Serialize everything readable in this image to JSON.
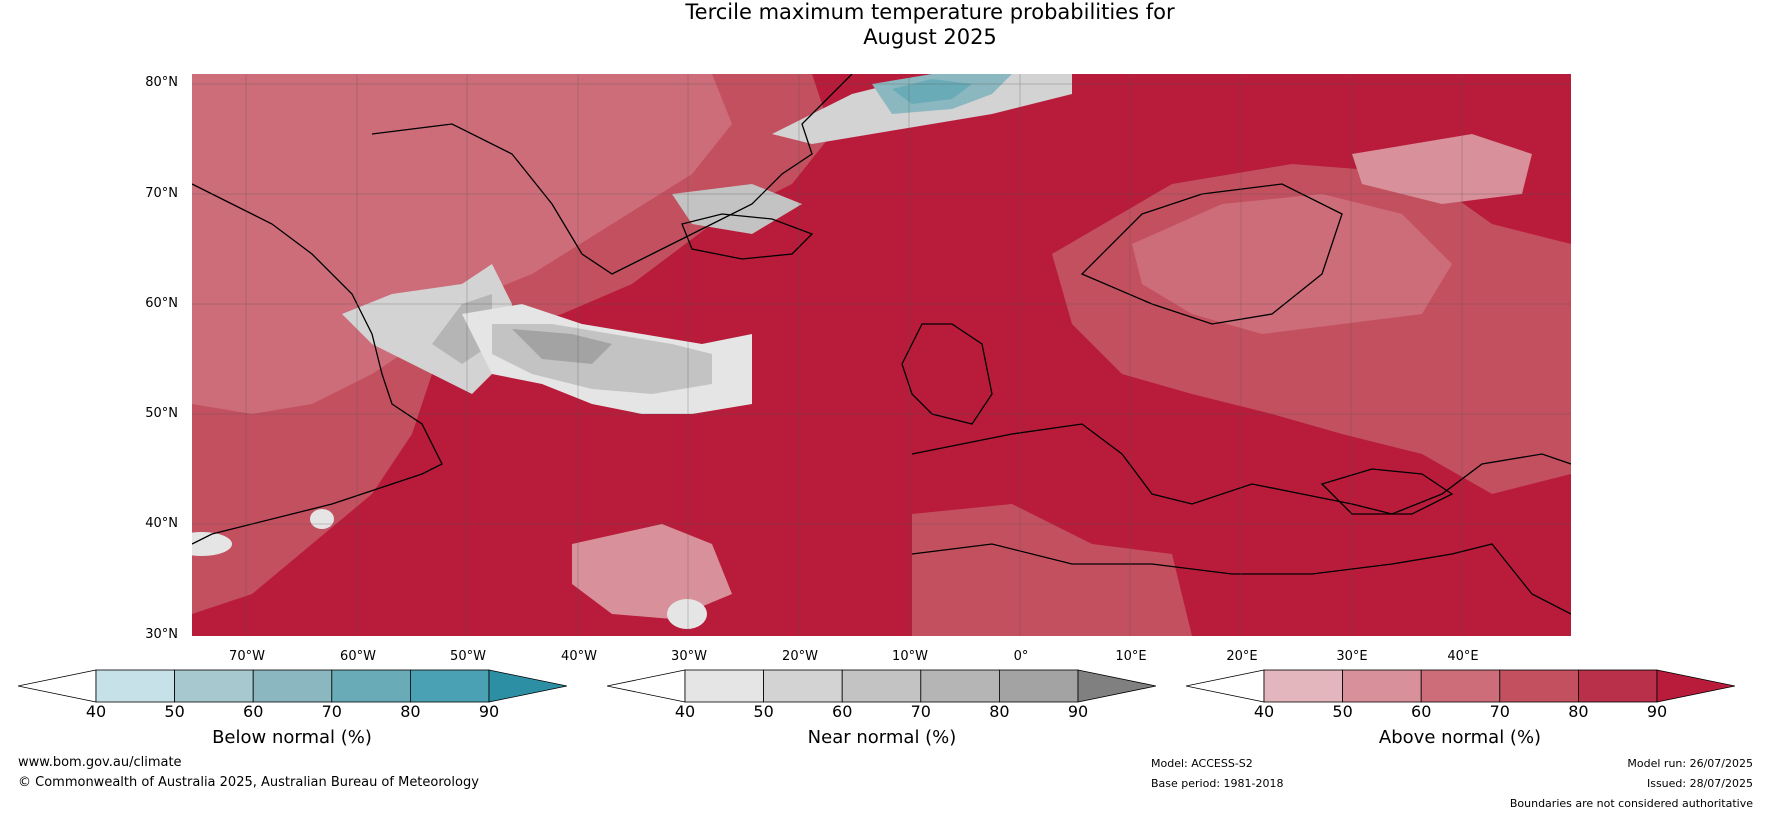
{
  "title": {
    "line1": "Tercile maximum temperature probabilities for",
    "line2": "August 2025"
  },
  "map": {
    "lat_labels": [
      "80°N",
      "70°N",
      "60°N",
      "50°N",
      "40°N",
      "30°N"
    ],
    "lon_labels": [
      "70°W",
      "60°W",
      "50°W",
      "40°W",
      "30°W",
      "20°W",
      "10°W",
      "0°",
      "10°E",
      "20°E",
      "30°E",
      "40°E"
    ]
  },
  "colorbars": {
    "below": {
      "label": "Below normal (%)",
      "ticks": [
        "40",
        "50",
        "60",
        "70",
        "80",
        "90"
      ],
      "colors": [
        "#ffffff",
        "#c7e1e8",
        "#a7c8cf",
        "#8ab7c0",
        "#6aabb8",
        "#4aa1b3",
        "#2d8fa3"
      ]
    },
    "near": {
      "label": "Near normal (%)",
      "ticks": [
        "40",
        "50",
        "60",
        "70",
        "80",
        "90"
      ],
      "colors": [
        "#ffffff",
        "#e5e5e5",
        "#d3d3d3",
        "#c3c3c3",
        "#b5b5b5",
        "#a3a3a3",
        "#808080"
      ]
    },
    "above": {
      "label": "Above normal (%)",
      "ticks": [
        "40",
        "50",
        "60",
        "70",
        "80",
        "90"
      ],
      "colors": [
        "#ffffff",
        "#e3b6bd",
        "#d8909a",
        "#cd6d7a",
        "#c3505f",
        "#b8304a",
        "#b81c3a"
      ]
    }
  },
  "footer": {
    "website": "www.bom.gov.au/climate",
    "copyright": "© Commonwealth of Australia 2025, Australian Bureau of Meteorology",
    "model": "Model: ACCESS-S2",
    "base_period": "Base period: 1981-2018",
    "model_run": "Model run: 26/07/2025",
    "issued": "Issued: 28/07/2025",
    "disclaimer": "Boundaries are not considered authoritative"
  }
}
